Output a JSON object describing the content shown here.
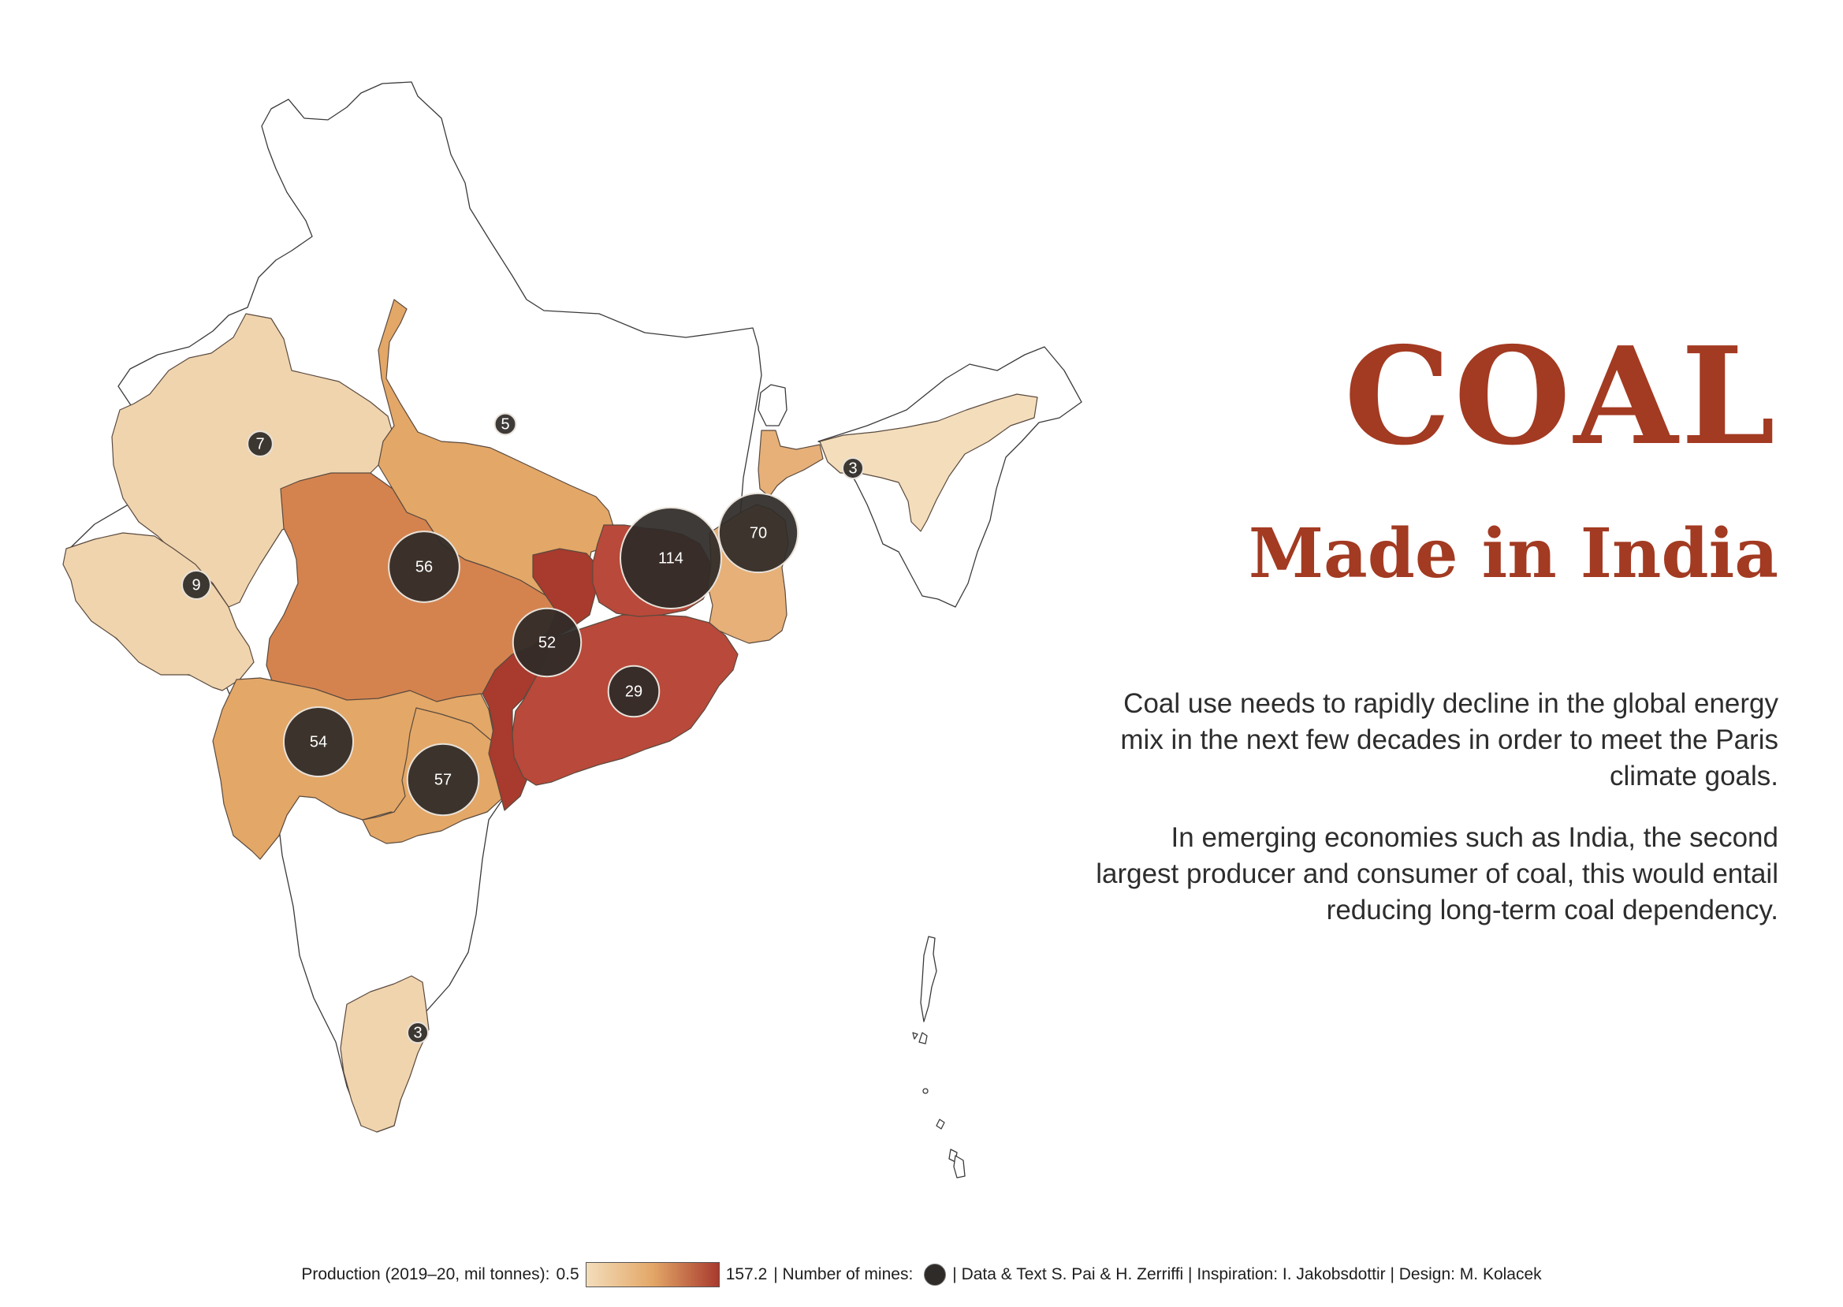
{
  "title": "COAL",
  "subtitle": "Made in India",
  "paragraphs": [
    "Coal use needs to rapidly decline in the global energy mix in the next few decades in order to meet the Paris climate goals.",
    "In emerging economies such as India, the second largest producer and consumer of coal, this would entail reducing long-term coal dependency."
  ],
  "colors": {
    "accent": "#a33a22",
    "scale_low": "#f3ddbb",
    "scale_mid": "#e3a767",
    "scale_high": "#a83a2e",
    "bubble": "#2f2b28"
  },
  "map": {
    "bubbles": [
      {
        "region": "rajasthan",
        "mines": 7,
        "label": "7"
      },
      {
        "region": "uttar-pradesh",
        "mines": 5,
        "label": "5"
      },
      {
        "region": "gujarat",
        "mines": 9,
        "label": "9"
      },
      {
        "region": "madhya-pradesh",
        "mines": 56,
        "label": "56"
      },
      {
        "region": "jharkhand",
        "mines": 114,
        "label": "114"
      },
      {
        "region": "west-bengal",
        "mines": 70,
        "label": "70"
      },
      {
        "region": "chhattisgarh",
        "mines": 52,
        "label": "52"
      },
      {
        "region": "odisha",
        "mines": 29,
        "label": "29"
      },
      {
        "region": "maharashtra",
        "mines": 54,
        "label": "54"
      },
      {
        "region": "telangana",
        "mines": 57,
        "label": "57"
      },
      {
        "region": "assam",
        "mines": 3,
        "label": "3"
      },
      {
        "region": "tamil-nadu",
        "mines": 3,
        "label": "3"
      }
    ]
  },
  "legend": {
    "production_label": "Production (2019–20, mil tonnes):",
    "min": "0.5",
    "max": "157.2",
    "mines_label": "| Number of mines:",
    "credits": "| Data & Text S. Pai & H. Zerriffi | Inspiration: I. Jakobsdottir | Design: M. Kolacek"
  }
}
